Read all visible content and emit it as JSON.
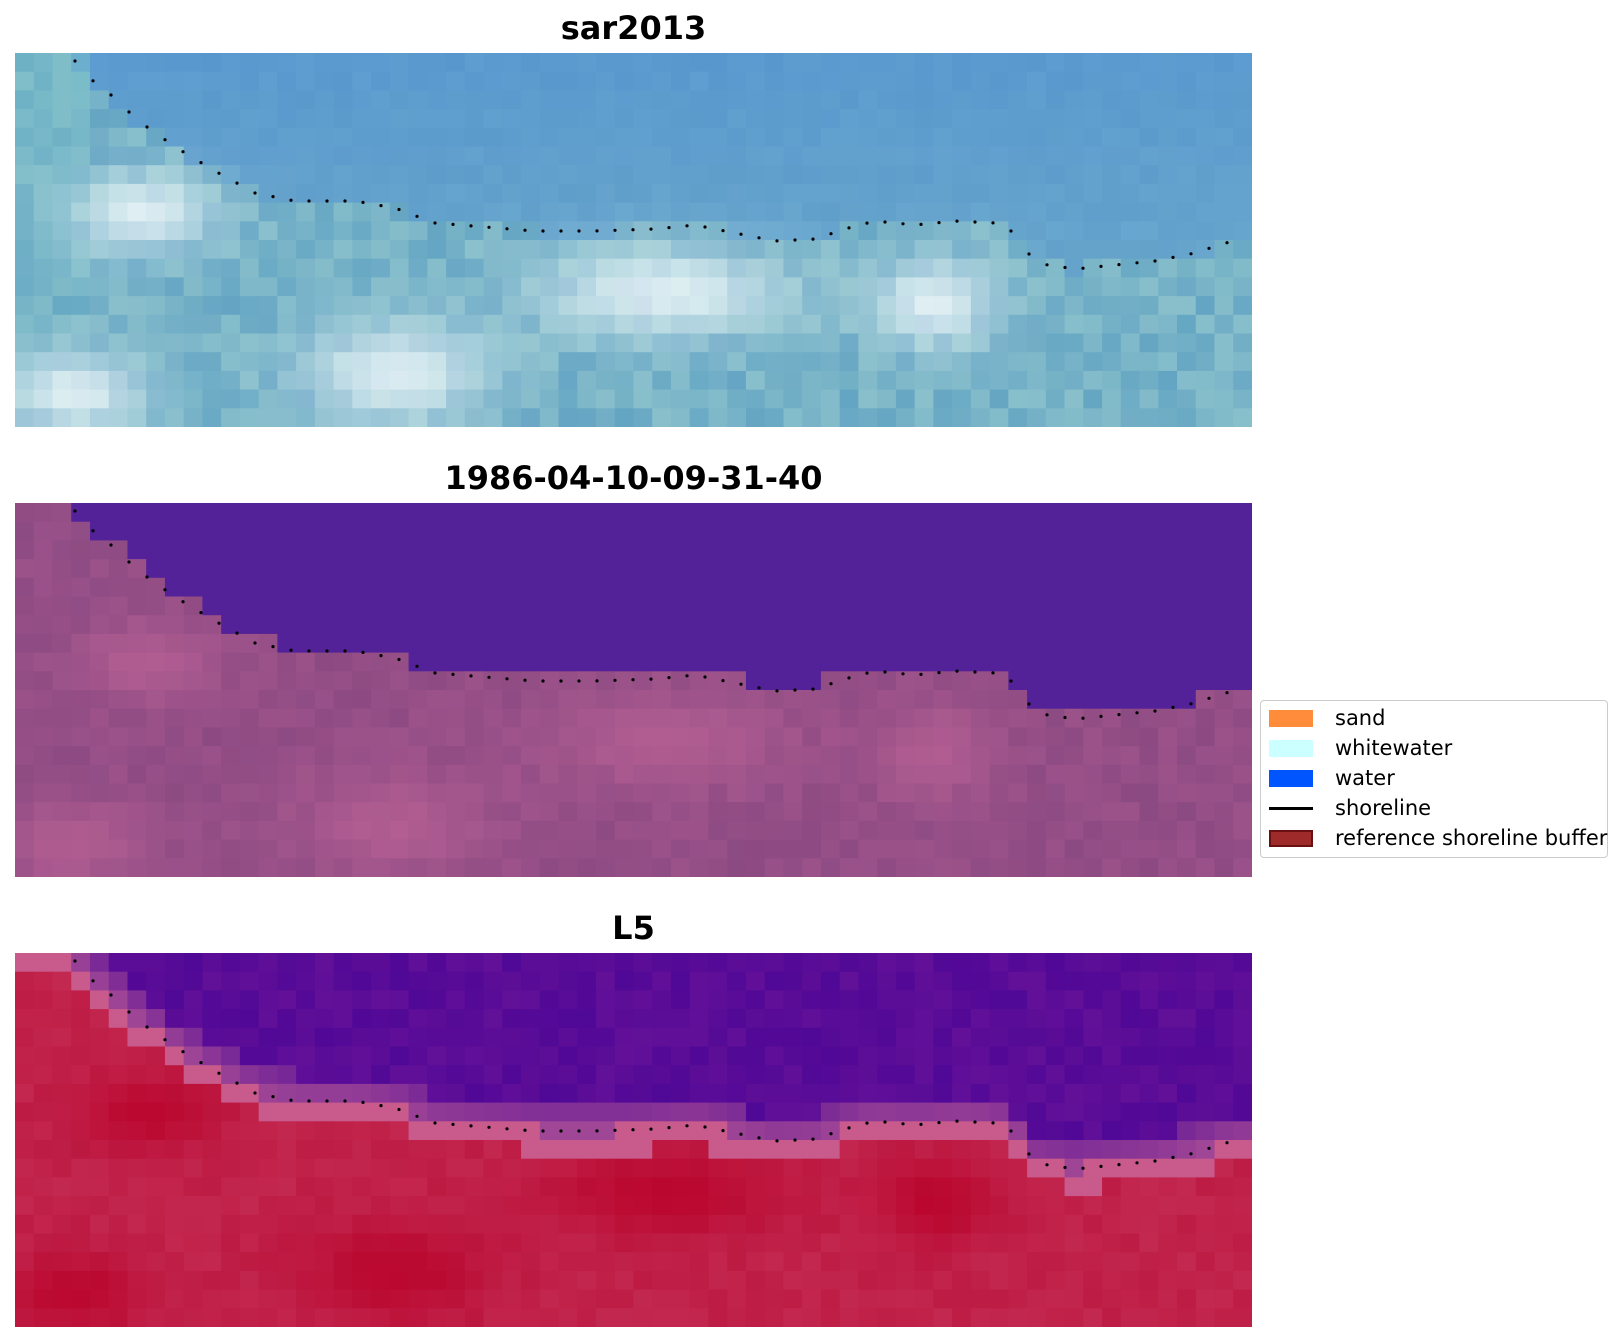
{
  "panels": [
    {
      "id": "rgb",
      "title": "sar2013"
    },
    {
      "id": "classified",
      "title": "1986-04-10-09-31-40"
    },
    {
      "id": "index",
      "title": "L5"
    }
  ],
  "legend": {
    "items": [
      {
        "label": "sand",
        "type": "patch",
        "color": "#ff8c3a",
        "border": "#ff8c3a"
      },
      {
        "label": "whitewater",
        "type": "patch",
        "color": "#ccffff",
        "border": "#ccffff"
      },
      {
        "label": "water",
        "type": "patch",
        "color": "#0055ff",
        "border": "#0055ff"
      },
      {
        "label": "shoreline",
        "type": "line",
        "color": "#000000"
      },
      {
        "label": "reference shoreline buffer",
        "type": "patch",
        "color": "#9e2a2a",
        "border": "#6b1010"
      }
    ]
  }
}
